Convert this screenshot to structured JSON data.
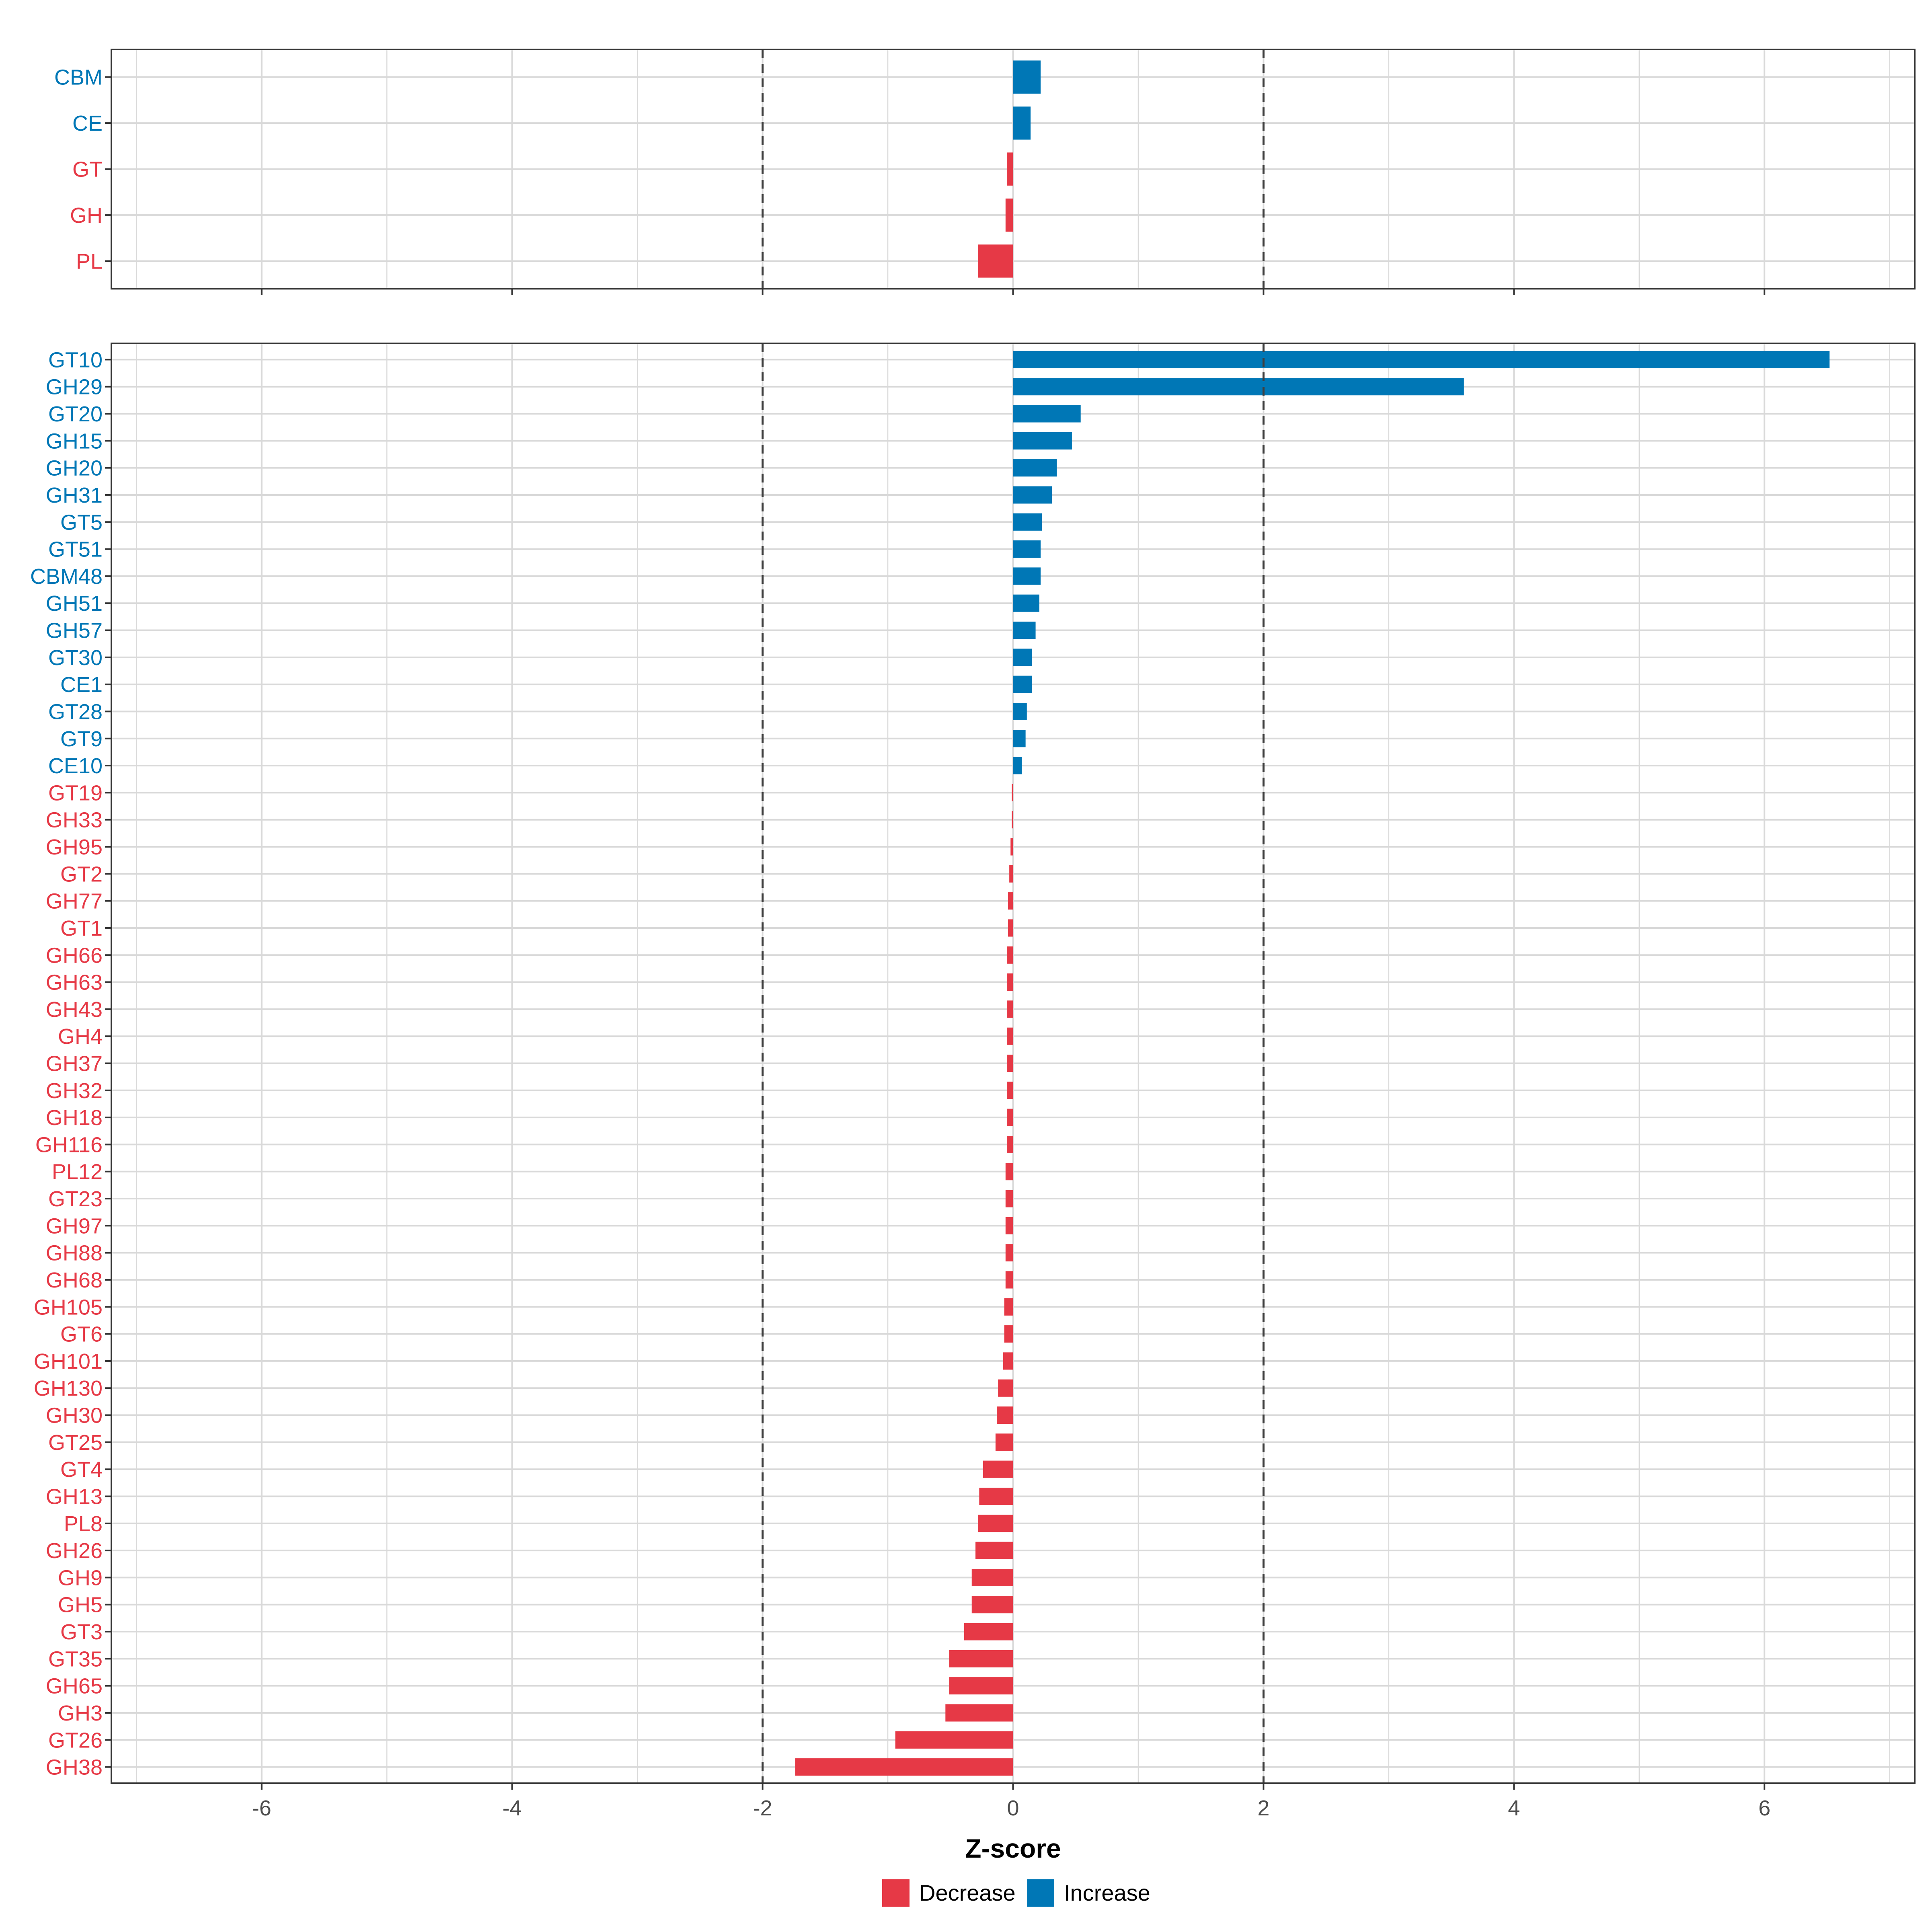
{
  "chart_data": {
    "type": "bar",
    "orientation": "horizontal",
    "xlabel": "Z-score",
    "xlim": [
      -7.2,
      7.2
    ],
    "xticks": [
      -6,
      -4,
      -2,
      0,
      2,
      4,
      6
    ],
    "xtick_labels": [
      "-6",
      "-4",
      "-2",
      "0",
      "2",
      "4",
      "6"
    ],
    "reference_lines": [
      -2,
      2
    ],
    "grid": true,
    "colors": {
      "Decrease": "#e63946",
      "Increase": "#0077b6",
      "grid": "#d9d9d9",
      "refline": "#404040"
    },
    "legend": {
      "placement": "bottom",
      "entries": [
        {
          "key": "Decrease",
          "label": "Decrease"
        },
        {
          "key": "Increase",
          "label": "Increase"
        }
      ]
    },
    "panels": [
      {
        "name": "family-class",
        "categories": [
          "CBM",
          "CE",
          "GT",
          "GH",
          "PL"
        ],
        "values": [
          0.22,
          0.14,
          -0.05,
          -0.06,
          -0.28
        ]
      },
      {
        "name": "family",
        "categories": [
          "GT10",
          "GH29",
          "GT20",
          "GH15",
          "GH20",
          "GH31",
          "GT5",
          "GT51",
          "CBM48",
          "GH51",
          "GH57",
          "GT30",
          "CE1",
          "GT28",
          "GT9",
          "CE10",
          "GT19",
          "GH33",
          "GH95",
          "GT2",
          "GH77",
          "GT1",
          "GH66",
          "GH63",
          "GH43",
          "GH4",
          "GH37",
          "GH32",
          "GH18",
          "GH116",
          "PL12",
          "GT23",
          "GH97",
          "GH88",
          "GH68",
          "GH105",
          "GT6",
          "GH101",
          "GH130",
          "GH30",
          "GT25",
          "GT4",
          "GH13",
          "PL8",
          "GH26",
          "GH9",
          "GH5",
          "GT3",
          "GT35",
          "GH65",
          "GH3",
          "GT26",
          "GH38"
        ],
        "values": [
          6.52,
          3.6,
          0.54,
          0.47,
          0.35,
          0.31,
          0.23,
          0.22,
          0.22,
          0.21,
          0.18,
          0.15,
          0.15,
          0.11,
          0.1,
          0.07,
          -0.01,
          -0.01,
          -0.02,
          -0.03,
          -0.04,
          -0.04,
          -0.05,
          -0.05,
          -0.05,
          -0.05,
          -0.05,
          -0.05,
          -0.05,
          -0.05,
          -0.06,
          -0.06,
          -0.06,
          -0.06,
          -0.06,
          -0.07,
          -0.07,
          -0.08,
          -0.12,
          -0.13,
          -0.14,
          -0.24,
          -0.27,
          -0.28,
          -0.3,
          -0.33,
          -0.33,
          -0.39,
          -0.51,
          -0.51,
          -0.54,
          -0.94,
          -1.74
        ]
      }
    ]
  }
}
